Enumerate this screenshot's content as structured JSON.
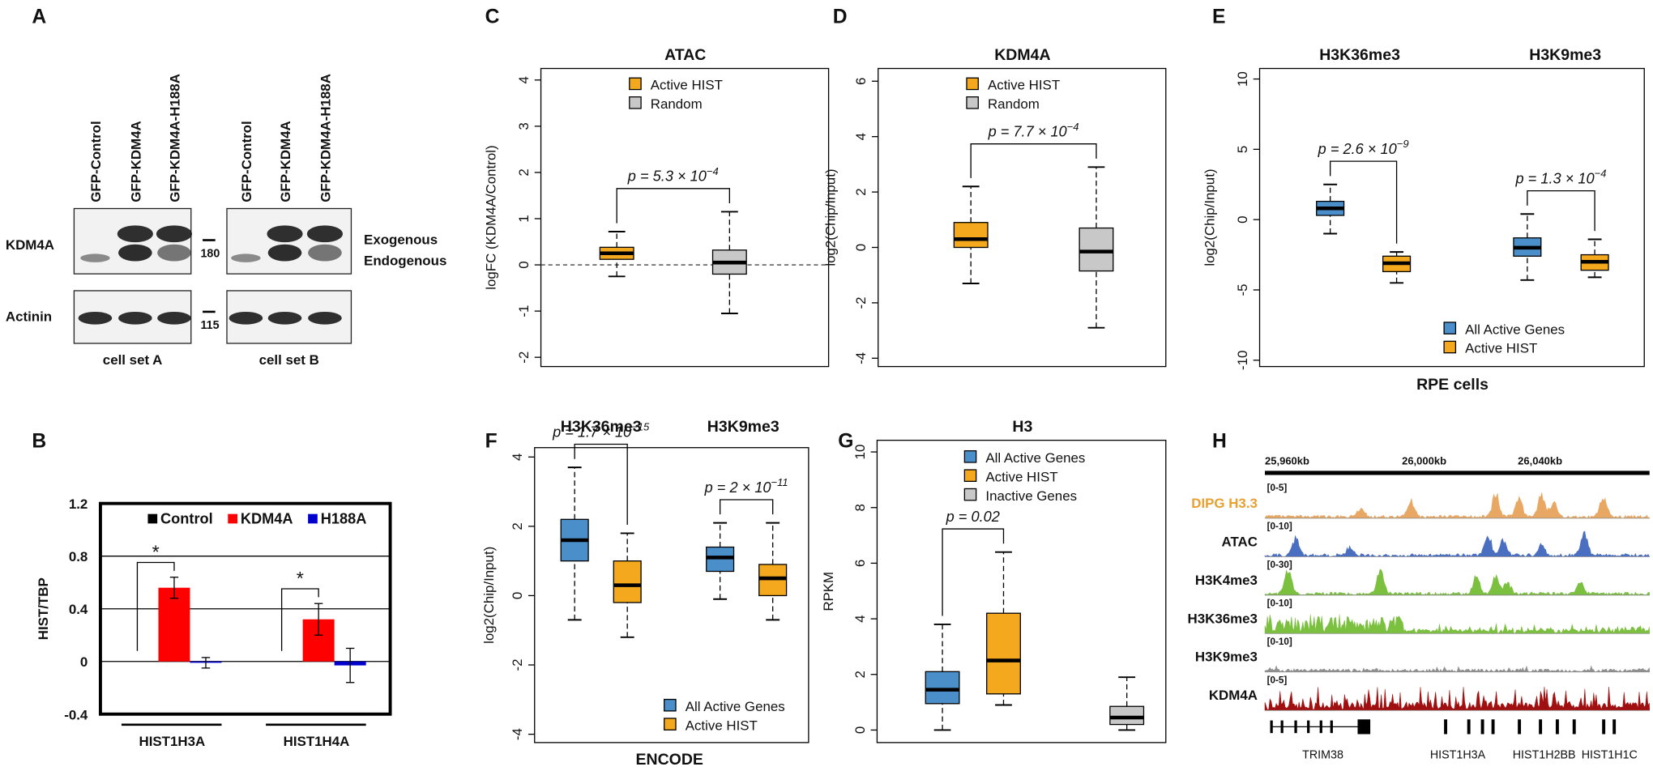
{
  "panel_a": {
    "label": "A",
    "sets": [
      {
        "name": "cell set A",
        "lanes": [
          "GFP-Control",
          "GFP-KDM4A",
          "GFP-KDM4A-H188A"
        ]
      },
      {
        "name": "cell set B",
        "lanes": [
          "GFP-Control",
          "GFP-KDM4A",
          "GFP-KDM4A-H188A"
        ]
      }
    ],
    "rows": [
      "KDM4A",
      "Actinin"
    ],
    "markers": [
      "180",
      "115"
    ],
    "band_labels": [
      "Exogenous",
      "Endogenous"
    ]
  },
  "chart_data": [
    {
      "panel": "B",
      "type": "bar",
      "ylabel": "HIST/TBP",
      "categories": [
        "HIST1H3A",
        "HIST1H4A"
      ],
      "series": [
        {
          "name": "Control",
          "color": "#000000",
          "values": [
            0,
            0
          ]
        },
        {
          "name": "KDM4A",
          "color": "#ff0000",
          "values": [
            0.56,
            0.32
          ],
          "errors": [
            0.08,
            0.12
          ]
        },
        {
          "name": "H188A",
          "color": "#0000cc",
          "values": [
            -0.01,
            -0.03
          ],
          "errors": [
            0.04,
            0.13
          ]
        }
      ],
      "ylim": [
        -0.4,
        1.2
      ],
      "yticks": [
        -0.4,
        0,
        0.4,
        0.8,
        1.2
      ],
      "grid": true,
      "annotations": [
        "*",
        "*"
      ]
    },
    {
      "panel": "C",
      "type": "box",
      "title": "ATAC",
      "ylabel": "logFC (KDM4A/Control)",
      "ylim": [
        -2.2,
        4.25
      ],
      "yticks": [
        -2,
        -1,
        0,
        1,
        2,
        3,
        4
      ],
      "reference_line": 0,
      "legend": "upper right",
      "series": [
        {
          "name": "Active HIST",
          "color": "#f4a81d",
          "boxes": [
            {
              "whislo": -0.25,
              "q1": 0.12,
              "med": 0.25,
              "q3": 0.38,
              "whishi": 0.72
            }
          ]
        },
        {
          "name": "Random",
          "color": "#c8c8c8",
          "boxes": [
            {
              "whislo": -1.05,
              "q1": -0.2,
              "med": 0.05,
              "q3": 0.32,
              "whishi": 1.15
            }
          ]
        }
      ],
      "annotations": [
        {
          "text": "p = 5.3 × 10",
          "exponent": "−4"
        }
      ]
    },
    {
      "panel": "D",
      "type": "box",
      "title": "KDM4A",
      "ylabel": "log2(Chip/Input)",
      "ylim": [
        -4.3,
        6.46
      ],
      "yticks": [
        -4,
        -2,
        0,
        2,
        4,
        6
      ],
      "legend": "upper right",
      "series": [
        {
          "name": "Active HIST",
          "color": "#f4a81d",
          "boxes": [
            {
              "whislo": -1.3,
              "q1": 0,
              "med": 0.3,
              "q3": 0.9,
              "whishi": 2.2
            }
          ]
        },
        {
          "name": "Random",
          "color": "#c8c8c8",
          "boxes": [
            {
              "whislo": -2.9,
              "q1": -0.85,
              "med": -0.15,
              "q3": 0.7,
              "whishi": 2.9
            }
          ]
        }
      ],
      "annotations": [
        {
          "text": "p = 7.7 × 10",
          "exponent": "−4"
        }
      ]
    },
    {
      "panel": "E",
      "type": "box",
      "categories": [
        "H3K36me3",
        "H3K9me3"
      ],
      "ylabel": "log2(Chip/Input)",
      "xlabel": "RPE cells",
      "ylim": [
        -10.45,
        10.75
      ],
      "yticks": [
        -10,
        -5,
        0,
        5,
        10
      ],
      "legend": "lower right",
      "series": [
        {
          "name": "All Active Genes",
          "color": "#4a8fca",
          "boxes": [
            {
              "whislo": -1.0,
              "q1": 0.3,
              "med": 0.8,
              "q3": 1.3,
              "whishi": 2.5
            },
            {
              "whislo": -4.3,
              "q1": -2.6,
              "med": -2.0,
              "q3": -1.3,
              "whishi": 0.4
            }
          ]
        },
        {
          "name": "Active HIST",
          "color": "#f4a81d",
          "boxes": [
            {
              "whislo": -4.5,
              "q1": -3.7,
              "med": -3.1,
              "q3": -2.6,
              "whishi": -2.3
            },
            {
              "whislo": -4.1,
              "q1": -3.6,
              "med": -3.0,
              "q3": -2.5,
              "whishi": -1.4
            }
          ]
        }
      ],
      "annotations": [
        {
          "text": "p = 2.6 × 10",
          "exponent": "−9"
        },
        {
          "text": "p = 1.3 × 10",
          "exponent": "−4"
        }
      ]
    },
    {
      "panel": "F",
      "type": "box",
      "categories": [
        "H3K36me3",
        "H3K9me3"
      ],
      "ylabel": "log2(Chip/Input)",
      "xlabel": "ENCODE",
      "ylim": [
        -4.24,
        4.27
      ],
      "yticks": [
        -4,
        -2,
        0,
        2,
        4
      ],
      "legend": "lower right",
      "series": [
        {
          "name": "All Active Genes",
          "color": "#4a8fca",
          "boxes": [
            {
              "whislo": -0.7,
              "q1": 1.0,
              "med": 1.6,
              "q3": 2.2,
              "whishi": 3.7
            },
            {
              "whislo": -0.1,
              "q1": 0.7,
              "med": 1.1,
              "q3": 1.4,
              "whishi": 2.1
            }
          ]
        },
        {
          "name": "Active HIST",
          "color": "#f4a81d",
          "boxes": [
            {
              "whislo": -1.2,
              "q1": -0.2,
              "med": 0.3,
              "q3": 1.0,
              "whishi": 1.8
            },
            {
              "whislo": -0.7,
              "q1": 0,
              "med": 0.5,
              "q3": 0.9,
              "whishi": 2.1
            }
          ]
        }
      ],
      "annotations": [
        {
          "text": "p = 1.7 × 10",
          "exponent": "−15"
        },
        {
          "text": "p = 2 × 10",
          "exponent": "−11"
        }
      ]
    },
    {
      "panel": "G",
      "type": "box",
      "title": "H3",
      "ylabel": "RPKM",
      "ylim": [
        -0.45,
        10.42
      ],
      "yticks": [
        0,
        2,
        4,
        6,
        8,
        10
      ],
      "legend": "upper right",
      "series": [
        {
          "name": "All Active Genes",
          "color": "#4a8fca",
          "boxes": [
            {
              "whislo": 0,
              "q1": 0.95,
              "med": 1.45,
              "q3": 2.1,
              "whishi": 3.8
            }
          ]
        },
        {
          "name": "Active HIST",
          "color": "#f4a81d",
          "boxes": [
            {
              "whislo": 0.9,
              "q1": 1.3,
              "med": 2.5,
              "q3": 4.2,
              "whishi": 6.4
            }
          ]
        },
        {
          "name": "Inactive Genes",
          "color": "#c8c8c8",
          "boxes": [
            {
              "whislo": 0,
              "q1": 0.2,
              "med": 0.45,
              "q3": 0.85,
              "whishi": 1.9
            }
          ]
        }
      ],
      "annotations": [
        {
          "text": "p = 0.02"
        }
      ]
    }
  ],
  "panel_h": {
    "label": "H",
    "coordinates": [
      "25,960kb",
      "26,000kb",
      "26,040kb"
    ],
    "tracks": [
      {
        "name": "DIPG H3.3",
        "range": "[0-5]",
        "color": "#e8a864",
        "label_color": "#e8a030"
      },
      {
        "name": "ATAC",
        "range": "[0-10]",
        "color": "#4a6fc0"
      },
      {
        "name": "H3K4me3",
        "range": "[0-30]",
        "color": "#7cc040"
      },
      {
        "name": "H3K36me3",
        "range": "[0-10]",
        "color": "#7cc040"
      },
      {
        "name": "H3K9me3",
        "range": "[0-10]",
        "color": "#909090"
      },
      {
        "name": "KDM4A",
        "range": "[0-5]",
        "color": "#a01010"
      }
    ],
    "genes": [
      "TRIM38",
      "HIST1H3A",
      "HIST1H2BB",
      "HIST1H1C"
    ]
  }
}
